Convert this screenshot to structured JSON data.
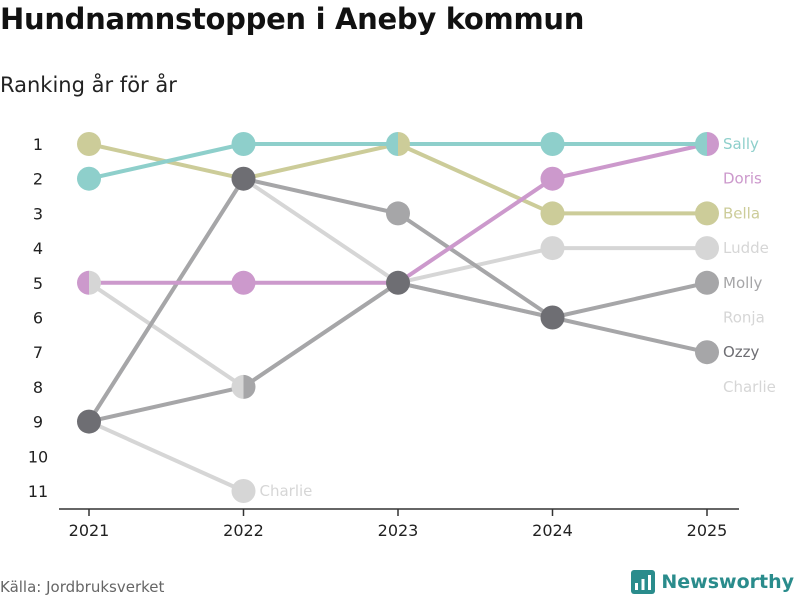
{
  "header": {
    "title": "Hundnamnstoppen i Aneby kommun",
    "subtitle": "Ranking år för år"
  },
  "footer": {
    "source": "Källa: Jordbruksverket",
    "brand": "Newsworthy"
  },
  "colors": {
    "Sally": "#8ecfcb",
    "Doris": "#cc99cc",
    "Bella": "#cccc99",
    "Ludde": "#d6d6d6",
    "Molly": "#a6a6a8",
    "Ronja": "#d6d6d6",
    "Ozzy": "#6e6e73",
    "Charlie": "#d6d6d6",
    "axis": "#333333",
    "brand": "#2a8c8c"
  },
  "chart_data": {
    "type": "line",
    "subtype": "bump",
    "title": "Hundnamnstoppen i Aneby kommun",
    "subtitle": "Ranking år för år",
    "x": [
      "2021",
      "2022",
      "2023",
      "2024",
      "2025"
    ],
    "y_ticks": [
      1,
      2,
      3,
      4,
      5,
      6,
      7,
      8,
      9,
      10,
      11
    ],
    "y_reversed": true,
    "ylim": [
      1,
      11
    ],
    "grid": false,
    "series": [
      {
        "name": "Sally",
        "values": [
          2,
          1,
          1,
          1,
          1
        ],
        "color": "#8ecfcb"
      },
      {
        "name": "Doris",
        "values": [
          5,
          5,
          5,
          2,
          1
        ],
        "color": "#cc99cc"
      },
      {
        "name": "Bella",
        "values": [
          1,
          2,
          1,
          3,
          3
        ],
        "color": "#cccc99"
      },
      {
        "name": "Ludde",
        "values": [
          5,
          8,
          5,
          4,
          4
        ],
        "color": "#d6d6d6"
      },
      {
        "name": "Molly",
        "values": [
          9,
          8,
          5,
          6,
          5
        ],
        "color": "#a6a6a8"
      },
      {
        "name": "Ronja",
        "values": [
          9,
          2,
          5,
          6,
          null
        ],
        "color": "#d6d6d6"
      },
      {
        "name": "Ozzy",
        "values": [
          9,
          2,
          3,
          6,
          7
        ],
        "color": "#a6a6a8"
      },
      {
        "name": "Charlie",
        "values": [
          9,
          11,
          null,
          null,
          null
        ],
        "color": "#d6d6d6"
      }
    ],
    "end_labels": [
      {
        "name": "Sally",
        "rank": 1
      },
      {
        "name": "Doris",
        "rank": 2
      },
      {
        "name": "Bella",
        "rank": 3
      },
      {
        "name": "Ludde",
        "rank": 4
      },
      {
        "name": "Molly",
        "rank": 5
      },
      {
        "name": "Ronja",
        "rank": 6
      },
      {
        "name": "Ozzy",
        "rank": 7
      },
      {
        "name": "Charlie",
        "rank": 8
      }
    ],
    "inline_labels": [
      {
        "name": "Charlie",
        "x": "2022",
        "rank": 11
      }
    ]
  }
}
